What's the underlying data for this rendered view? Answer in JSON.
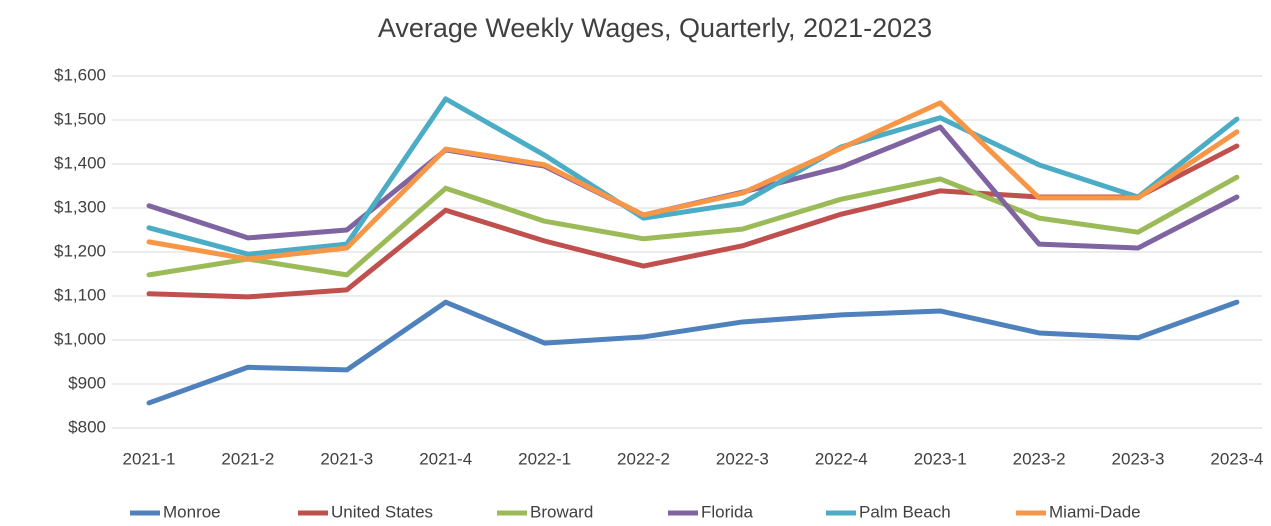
{
  "chart_data": {
    "type": "line",
    "title": "Average Weekly Wages, Quarterly, 2021-2023",
    "categories": [
      "2021-1",
      "2021-2",
      "2021-3",
      "2021-4",
      "2022-1",
      "2022-2",
      "2022-3",
      "2022-4",
      "2023-1",
      "2023-2",
      "2023-3",
      "2023-4"
    ],
    "series": [
      {
        "name": "Monroe",
        "color": "#4f81bd",
        "values": [
          857,
          938,
          932,
          1086,
          993,
          1007,
          1041,
          1057,
          1066,
          1016,
          1005,
          1086
        ]
      },
      {
        "name": "United States",
        "color": "#c0504d",
        "values": [
          1105,
          1098,
          1114,
          1295,
          1225,
          1168,
          1214,
          1286,
          1339,
          1325,
          1325,
          1441
        ]
      },
      {
        "name": "Broward",
        "color": "#9bbb59",
        "values": [
          1148,
          1184,
          1148,
          1345,
          1270,
          1230,
          1252,
          1320,
          1366,
          1277,
          1245,
          1370
        ]
      },
      {
        "name": "Florida",
        "color": "#8064a2",
        "values": [
          1305,
          1232,
          1250,
          1432,
          1395,
          1284,
          1336,
          1393,
          1484,
          1218,
          1209,
          1325
        ]
      },
      {
        "name": "Palm Beach",
        "color": "#4bacc6",
        "values": [
          1255,
          1195,
          1218,
          1548,
          1420,
          1277,
          1311,
          1439,
          1505,
          1398,
          1325,
          1502
        ]
      },
      {
        "name": "Miami-Dade",
        "color": "#f79646",
        "values": [
          1223,
          1184,
          1209,
          1434,
          1398,
          1284,
          1334,
          1436,
          1539,
          1323,
          1323,
          1473
        ]
      }
    ],
    "ylim": [
      800,
      1600
    ],
    "yticks": [
      {
        "value": 800,
        "label": "$800"
      },
      {
        "value": 900,
        "label": "$900"
      },
      {
        "value": 1000,
        "label": "$1,000"
      },
      {
        "value": 1100,
        "label": "$1,100"
      },
      {
        "value": 1200,
        "label": "$1,200"
      },
      {
        "value": 1300,
        "label": "$1,300"
      },
      {
        "value": 1400,
        "label": "$1,400"
      },
      {
        "value": 1500,
        "label": "$1,500"
      },
      {
        "value": 1600,
        "label": "$1,600"
      }
    ],
    "grid": true,
    "legend": "bottom"
  }
}
